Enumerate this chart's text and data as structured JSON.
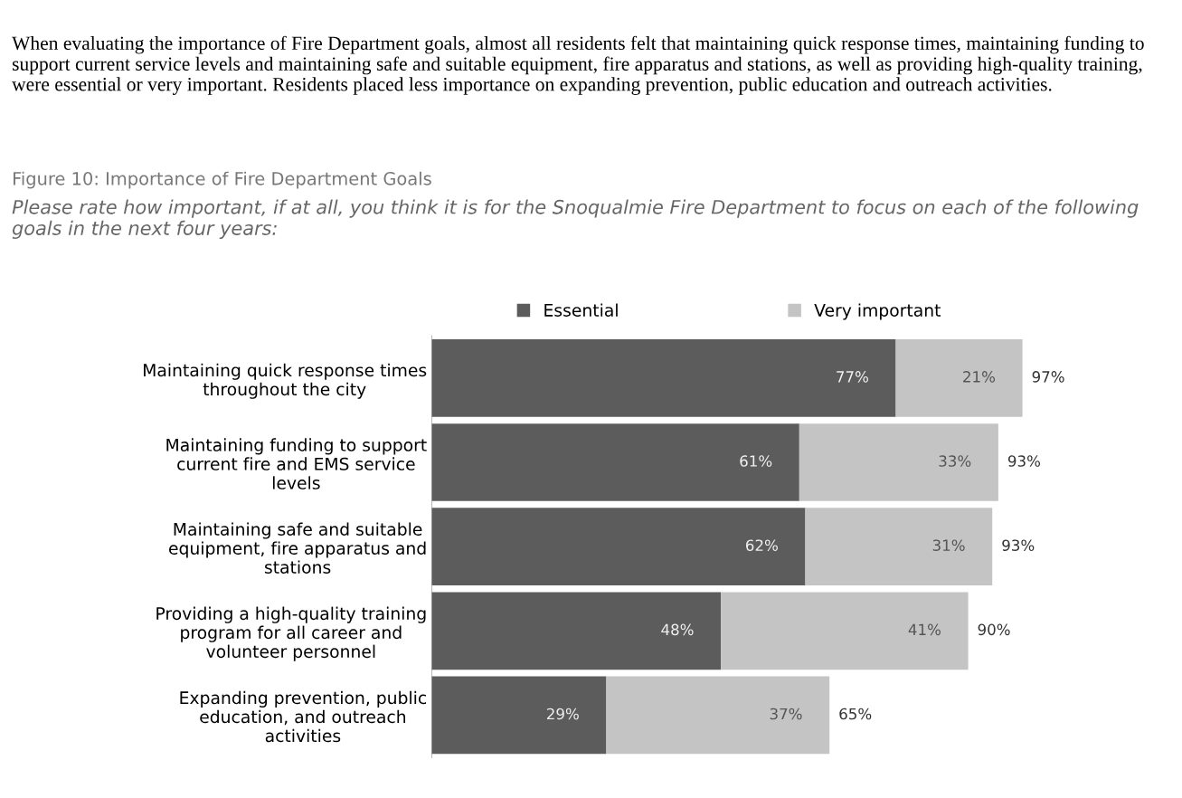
{
  "chart_data": {
    "type": "bar",
    "orientation": "horizontal",
    "stacked": true,
    "title": "Figure 10: Importance of Fire Department Goals",
    "subtitle": "Please rate how important, if at all, you think it is for the Snoqualmie Fire Department to focus on each of the following goals in the next four years:",
    "annotations": [
      "When evaluating the importance of Fire Department goals, almost all residents felt that maintaining quick response times, maintaining funding to support current service levels and maintaining safe and suitable equipment, fire apparatus and stations, as well as providing high-quality training, were essential or very important. Residents placed less importance on expanding prevention, public education and outreach activities."
    ],
    "categories": [
      "Maintaining quick response times\nthroughout the city",
      "Maintaining funding to support\ncurrent fire and EMS service\nlevels",
      "Maintaining safe and suitable\nequipment, fire apparatus and\nstations",
      "Providing a high-quality training\nprogram for all career and\nvolunteer personnel",
      "Expanding prevention, public\neducation, and outreach\nactivities"
    ],
    "series": [
      {
        "name": "Essential",
        "color": "#5c5c5c",
        "values": [
          77,
          61,
          62,
          48,
          29
        ],
        "value_labels": [
          "77%",
          "61%",
          "62%",
          "48%",
          "29%"
        ]
      },
      {
        "name": "Very important",
        "color": "#c4c4c4",
        "values": [
          21,
          33,
          31,
          41,
          37
        ],
        "value_labels": [
          "21%",
          "33%",
          "31%",
          "41%",
          "37%"
        ]
      }
    ],
    "totals": [
      "97%",
      "93%",
      "93%",
      "90%",
      "65%"
    ],
    "tick_labels": "y",
    "grid": false,
    "legend": "top"
  }
}
